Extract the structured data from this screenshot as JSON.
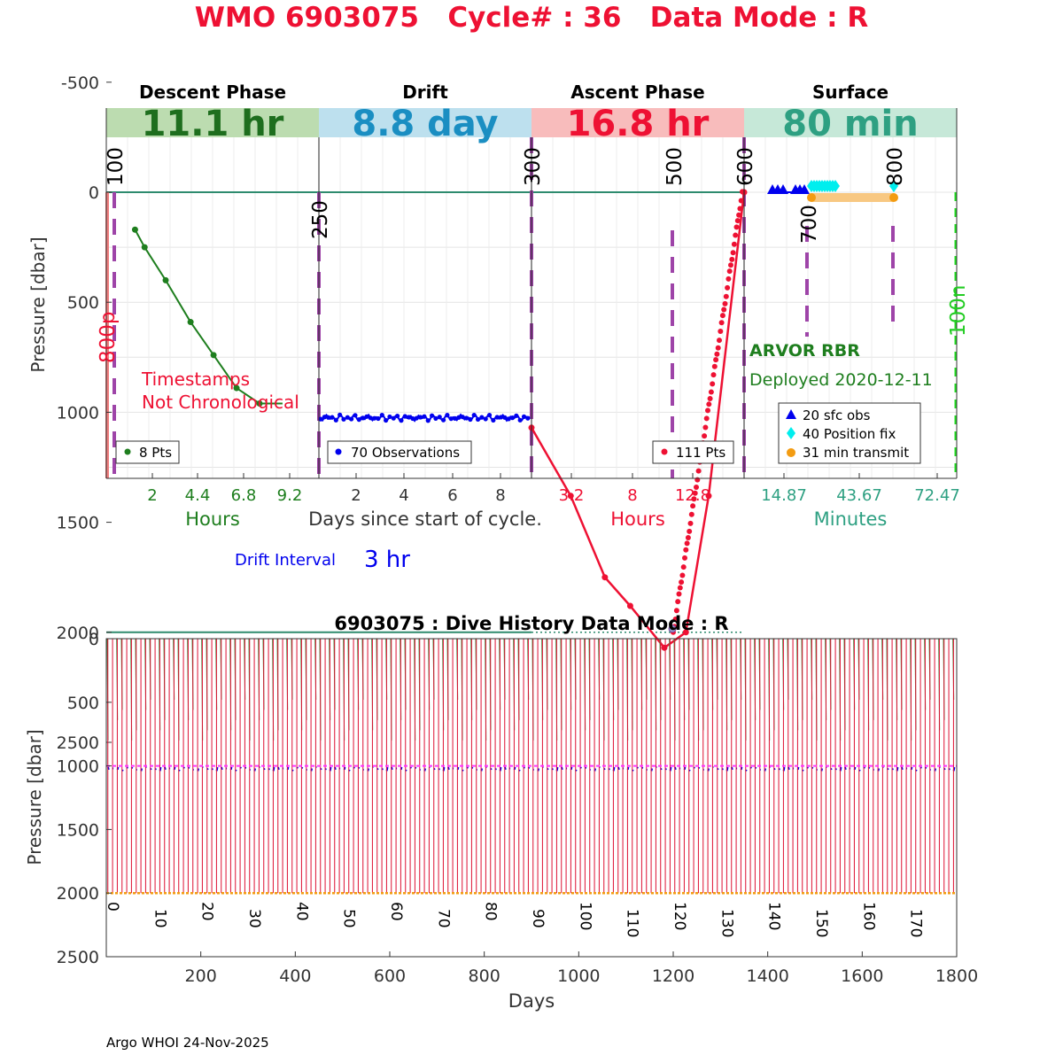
{
  "title": "WMO 6903075   Cycle# : 36   Data Mode : R",
  "phases": [
    {
      "name": "Descent Phase",
      "duration": "11.1 hr",
      "bg": "#bcdcb0",
      "color": "#1e6e1e"
    },
    {
      "name": "Drift",
      "duration": "8.8 day",
      "bg": "#bde0ee",
      "color": "#1a8ec2"
    },
    {
      "name": "Ascent Phase",
      "duration": "16.8 hr",
      "bg": "#f8bcbc",
      "color": "#ee1133"
    },
    {
      "name": "Surface",
      "duration": "80 min",
      "bg": "#c6e8d8",
      "color": "#2ea082"
    }
  ],
  "top": {
    "ylabel": "Pressure [dbar]",
    "yticks": [
      "-500",
      "0",
      "500",
      "1000",
      "1500",
      "2000",
      "2500"
    ],
    "xaxis": {
      "descent": {
        "ticks": [
          "2",
          "4.4",
          "6.8",
          "9.2"
        ],
        "label": "Hours",
        "color": "#1e7e1e"
      },
      "drift": {
        "ticks": [
          "2",
          "4",
          "6",
          "8"
        ],
        "label": "Days since start of cycle.",
        "color": "#333333"
      },
      "ascent": {
        "ticks": [
          "3.2",
          "8",
          "12.8"
        ],
        "label": "Hours",
        "color": "#ee1133"
      },
      "surface": {
        "ticks": [
          "14.87",
          "43.67",
          "72.47"
        ],
        "label": "Minutes",
        "color": "#2ea082"
      }
    },
    "rotated_labels": {
      "l100": "100",
      "l250": "250",
      "l300": "300",
      "l500": "500",
      "l600": "600",
      "l700": "700",
      "l800": "800",
      "l800p": "800p",
      "l100n": "100n"
    },
    "warning": [
      "Timestamps",
      "Not Chronological"
    ],
    "float_type": "ARVOR RBR",
    "deployed": "Deployed 2020-12-11",
    "legends": {
      "descent": "8 Pts",
      "drift": "70 Observations",
      "ascent": "111 Pts",
      "surface": [
        "20 sfc obs",
        "40 Position fix",
        "31 min transmit"
      ]
    },
    "drift_interval_label": "Drift Interval",
    "drift_interval_value": "3 hr"
  },
  "chart_data": [
    {
      "type": "line",
      "title": "Descent Phase",
      "xlabel": "Hours",
      "ylabel": "Pressure [dbar]",
      "x": [
        1.5,
        2.0,
        3.1,
        4.4,
        5.6,
        6.8,
        8.0,
        9.2
      ],
      "y": [
        170,
        250,
        400,
        590,
        740,
        890,
        960,
        960
      ],
      "ylim": [
        2600,
        -600
      ]
    },
    {
      "type": "scatter",
      "title": "Drift",
      "xlabel": "Days since start of cycle.",
      "x_range": [
        0,
        8.8
      ],
      "y_mean": 1025,
      "count": 70
    },
    {
      "type": "line",
      "title": "Ascent Phase",
      "xlabel": "Hours",
      "x": [
        0.0,
        3.1,
        5.8,
        7.8,
        10.5,
        12.2,
        14.0,
        16.8
      ],
      "y": [
        1070,
        1380,
        1750,
        1880,
        2070,
        2000,
        1380,
        0
      ],
      "ylim": [
        2600,
        -600
      ]
    },
    {
      "type": "scatter",
      "title": "Surface",
      "xlabel": "Minutes",
      "series": [
        {
          "name": "20 sfc obs",
          "x": [
            8,
            12,
            18
          ],
          "y": [
            0,
            0,
            0
          ]
        },
        {
          "name": "40 Position fix",
          "x": [
            24,
            28,
            32
          ],
          "y": [
            -50,
            -50,
            -50
          ]
        },
        {
          "name": "31 min transmit",
          "x": [
            24,
            55
          ],
          "y": [
            50,
            50
          ]
        }
      ]
    },
    {
      "type": "line",
      "title": "6903075 : Dive History      Data Mode : R",
      "xlabel": "Days",
      "ylabel": "Pressure [dbar]",
      "xticks": [
        "200",
        "400",
        "600",
        "800",
        "1000",
        "1200",
        "1400",
        "1600",
        "1800"
      ],
      "yticks": [
        "0",
        "500",
        "1000",
        "1500",
        "2000",
        "2500"
      ],
      "cycle_labels": [
        "0",
        "10",
        "20",
        "30",
        "40",
        "50",
        "60",
        "70",
        "80",
        "90",
        "100",
        "110",
        "120",
        "130",
        "140",
        "150",
        "160",
        "170"
      ],
      "cycles": 180,
      "days_per_cycle": 10,
      "park_pressure": 1000,
      "profile_pressure": 2000,
      "xlim": [
        0,
        1800
      ],
      "ylim": [
        2500,
        0
      ]
    }
  ],
  "footer": "Argo WHOI 24-Nov-2025"
}
